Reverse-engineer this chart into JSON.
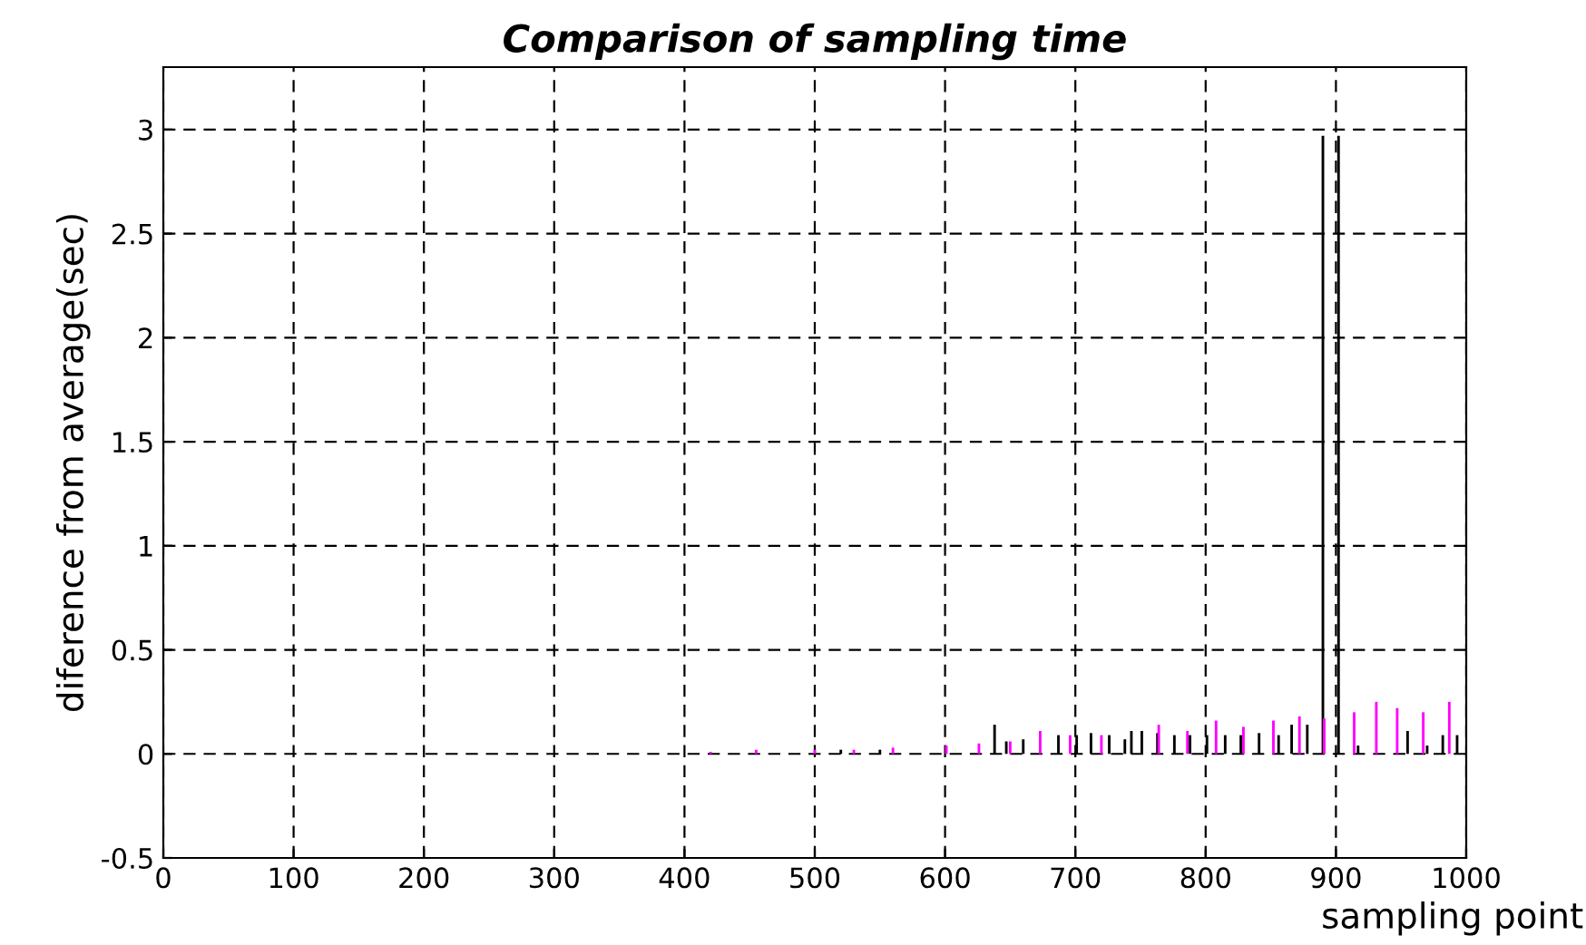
{
  "chart_data": {
    "type": "bar",
    "title": "Comparison of sampling time",
    "xlabel": "sampling point",
    "ylabel": "diference from average(sec)",
    "xlim": [
      0,
      1000
    ],
    "xticks": [
      0,
      100,
      200,
      300,
      400,
      500,
      600,
      700,
      800,
      900,
      1000
    ],
    "ylim": [
      -0.5,
      3.3
    ],
    "yticks": [
      -0.5,
      0,
      0.5,
      1,
      1.5,
      2,
      2.5,
      3
    ],
    "grid": true,
    "series": [
      {
        "color": "#000000",
        "x": [
          520,
          550,
          638,
          647,
          660,
          687,
          701,
          712,
          726,
          738,
          743,
          751,
          763,
          776,
          788,
          801,
          815,
          827,
          841,
          856,
          866,
          878,
          890,
          902,
          917,
          955,
          970,
          982,
          993
        ],
        "values": [
          0.02,
          0.02,
          0.14,
          0.06,
          0.07,
          0.09,
          0.09,
          0.1,
          0.09,
          0.07,
          0.11,
          0.11,
          0.1,
          0.09,
          0.09,
          0.09,
          0.09,
          0.09,
          0.1,
          0.09,
          0.14,
          0.14,
          2.97,
          2.97,
          0.04,
          0.11,
          0.04,
          0.09,
          0.09
        ]
      },
      {
        "color": "#ff00ff",
        "x": [
          420,
          455,
          500,
          530,
          560,
          601,
          626,
          650,
          673,
          696,
          720,
          764,
          786,
          808,
          829,
          852,
          872,
          891,
          914,
          931,
          947,
          967,
          987
        ],
        "values": [
          0.01,
          0.02,
          0.02,
          0.02,
          0.03,
          0.04,
          0.05,
          0.06,
          0.11,
          0.09,
          0.09,
          0.14,
          0.11,
          0.16,
          0.13,
          0.16,
          0.18,
          0.17,
          0.2,
          0.25,
          0.22,
          0.2,
          0.25
        ]
      }
    ]
  }
}
